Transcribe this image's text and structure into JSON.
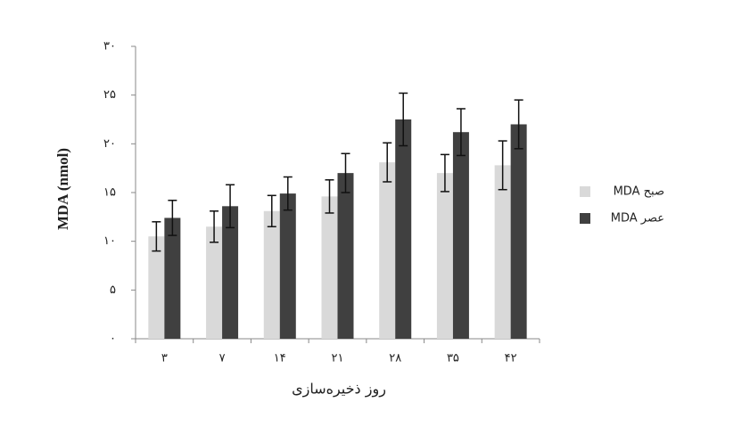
{
  "chart_data": {
    "type": "bar",
    "y_label": "MDA (nmol)",
    "x_label": "روز ذخیره‌سازی",
    "categories": [
      "۳",
      "۷",
      "۱۴",
      "۲۱",
      "۲۸",
      "۳۵",
      "۴۲"
    ],
    "series": [
      {
        "name": "صبح MDA",
        "color": "#d9d9d9",
        "values": [
          10.5,
          11.5,
          13.1,
          14.6,
          18.1,
          17.0,
          17.8
        ],
        "errors": [
          1.5,
          1.6,
          1.6,
          1.7,
          2.0,
          1.9,
          2.5
        ]
      },
      {
        "name": "عصر MDA",
        "color": "#404040",
        "values": [
          12.4,
          13.6,
          14.9,
          17.0,
          22.5,
          21.2,
          22.0
        ],
        "errors": [
          1.8,
          2.2,
          1.7,
          2.0,
          2.7,
          2.4,
          2.5
        ]
      }
    ],
    "ylim": [
      0,
      30
    ],
    "yticks": [
      {
        "value": 0,
        "label": "۰"
      },
      {
        "value": 5,
        "label": "۵"
      },
      {
        "value": 10,
        "label": "۱۰"
      },
      {
        "value": 15,
        "label": "۱۵"
      },
      {
        "value": 20,
        "label": "۲۰"
      },
      {
        "value": 25,
        "label": "۲۵"
      },
      {
        "value": 30,
        "label": "۳۰"
      }
    ],
    "legend": "right"
  }
}
